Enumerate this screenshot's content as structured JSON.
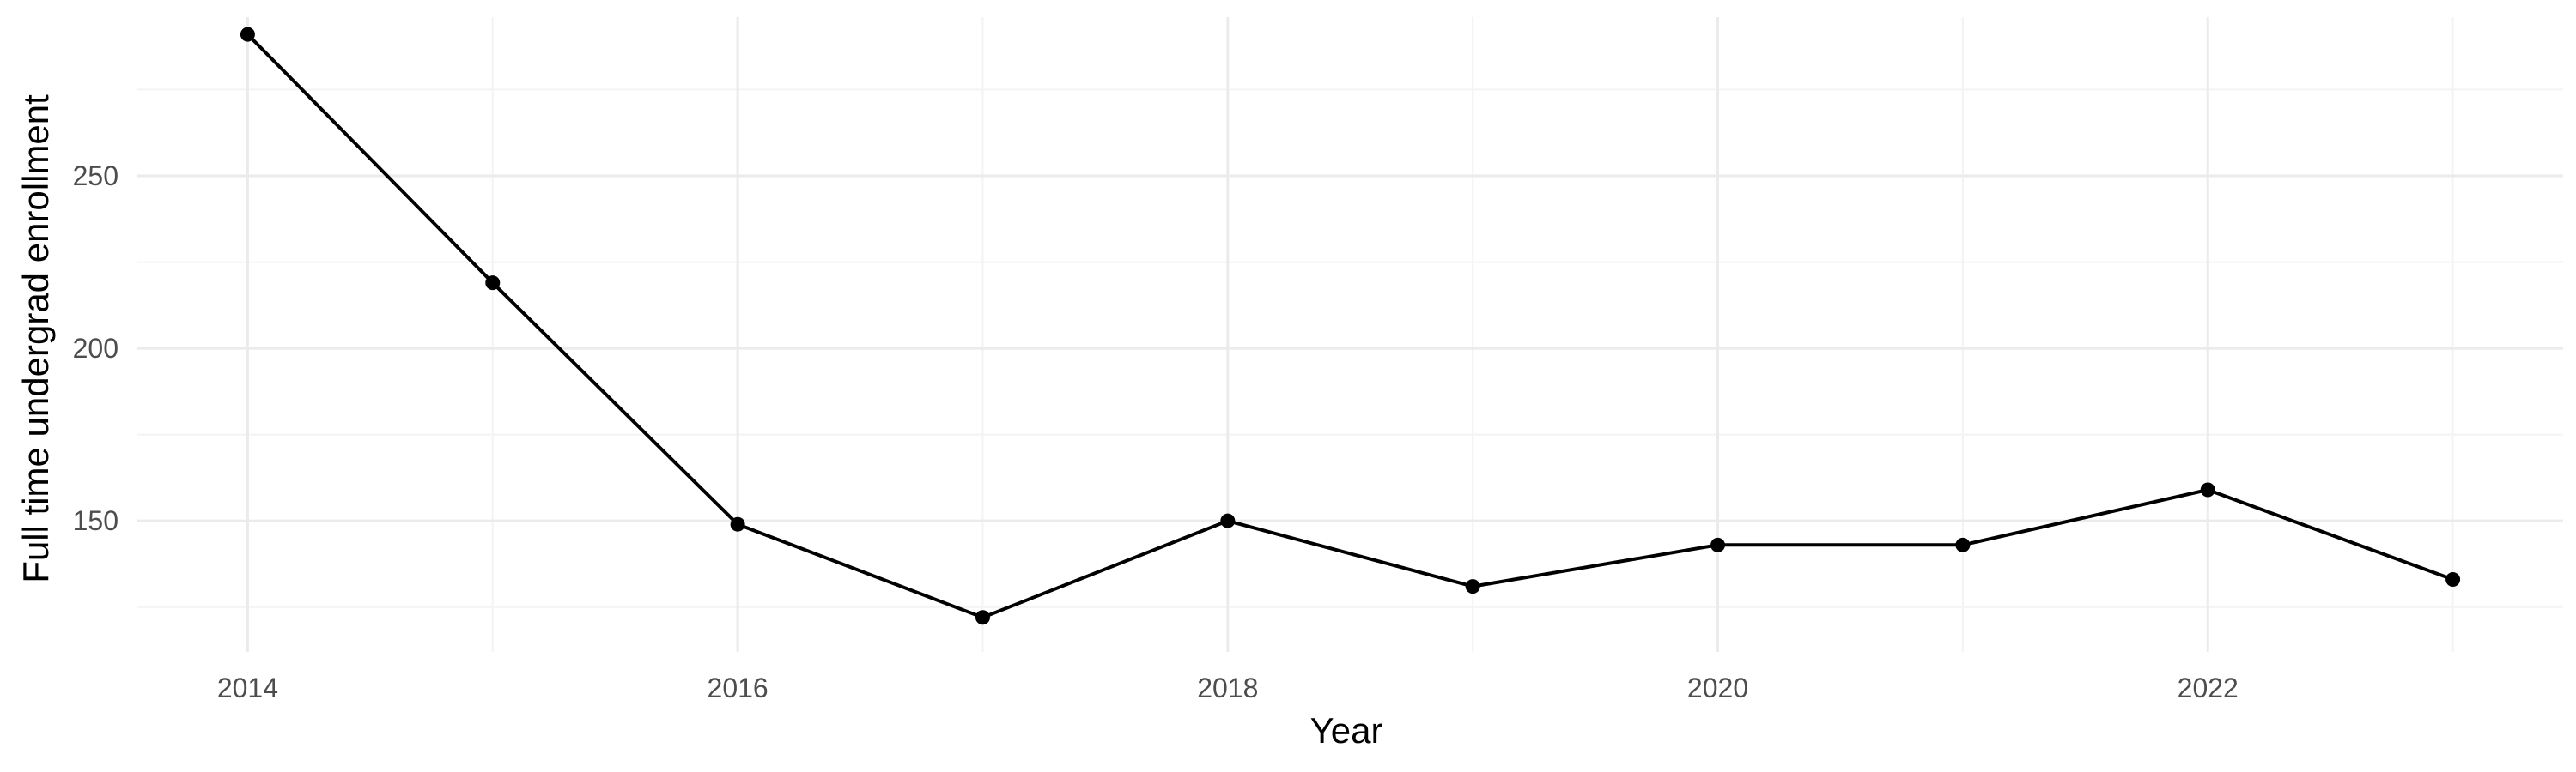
{
  "chart_data": {
    "type": "line",
    "title": "",
    "xlabel": "Year",
    "ylabel": "Full time undergrad enrollment",
    "x": [
      2014,
      2015,
      2016,
      2017,
      2018,
      2019,
      2020,
      2021,
      2022,
      2023
    ],
    "series": [
      {
        "values": [
          291,
          219,
          149,
          122,
          150,
          131,
          143,
          143,
          159,
          133
        ]
      }
    ],
    "xlim": [
      2013.55,
      2023.45
    ],
    "ylim": [
      112,
      296
    ],
    "x_ticks": [
      2014,
      2016,
      2018,
      2020,
      2022
    ],
    "x_tick_labels": [
      "2014",
      "2016",
      "2018",
      "2020",
      "2022"
    ],
    "x_minor_ticks": [
      2015,
      2017,
      2019,
      2021,
      2023
    ],
    "y_ticks": [
      150,
      200,
      250
    ],
    "y_tick_labels": [
      "150",
      "200",
      "250"
    ],
    "y_minor_ticks": [
      125,
      175,
      225,
      275
    ],
    "grid": true,
    "legend": "none",
    "colors": {
      "line": "#000000",
      "point": "#000000",
      "grid_major": "#ebebeb",
      "grid_minor": "#f4f4f4",
      "background": "#ffffff"
    }
  }
}
